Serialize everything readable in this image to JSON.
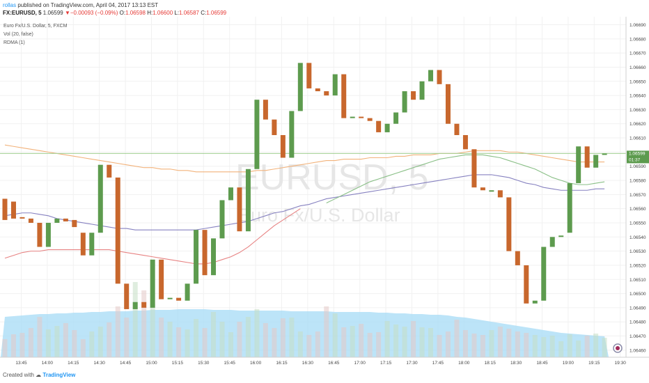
{
  "header": {
    "author": "rollas",
    "published_text": "published on TradingView.com, April 04, 2017 13:13 EST",
    "symbol": "FX:EURUSD, 5",
    "last_price": "1.06599",
    "change": "▼−0.00093 (−0.09%)",
    "open_label": "O:",
    "open": "1.06598",
    "high_label": "H:",
    "high": "1.06600",
    "low_label": "L:",
    "low": "1.06587",
    "close_label": "C:",
    "close": "1.06599"
  },
  "legend": {
    "title": "Euro Fx/U.S. Dollar, 5, FXCM",
    "vol": "Vol (20, false)",
    "rdma": "RDMA (1)"
  },
  "watermark": {
    "symbol": "EURUSD, 5",
    "name": "Euro Fx/U.S. Dollar"
  },
  "price_badge": {
    "value": "1.06599",
    "countdown": "01:37"
  },
  "footer": {
    "created_with": "Created with",
    "brand": "TradingView"
  },
  "colors": {
    "up": "#5d9b4e",
    "down": "#c8672d",
    "price_line": "#9fce90",
    "volume": "#a6dbf5",
    "volume_bar_up": "#c5dfc5",
    "volume_bar_down": "#e4c9c7",
    "ma_orange": "#f2b27a",
    "ma_purple": "#8681c0",
    "ma_green": "#89bf86",
    "ma_red": "#e78282"
  },
  "chart_data": {
    "type": "candlestick",
    "symbol": "EURUSD",
    "interval": "5",
    "ylim": [
      1.06455,
      1.06695
    ],
    "y_ticks": [
      "1.06690",
      "1.06680",
      "1.06670",
      "1.06660",
      "1.06650",
      "1.06640",
      "1.06630",
      "1.06620",
      "1.06610",
      "1.06600",
      "1.06590",
      "1.06580",
      "1.06570",
      "1.06560",
      "1.06550",
      "1.06540",
      "1.06530",
      "1.06520",
      "1.06510",
      "1.06500",
      "1.06490",
      "1.06480",
      "1.06470",
      "1.06460"
    ],
    "x_ticks": [
      "13:45",
      "14:00",
      "14:15",
      "14:30",
      "14:45",
      "15:00",
      "15:15",
      "15:30",
      "15:45",
      "16:00",
      "16:15",
      "16:30",
      "16:45",
      "17:00",
      "17:15",
      "17:30",
      "17:45",
      "18:00",
      "18:15",
      "18:30",
      "18:45",
      "19:00",
      "19:15",
      "19:30"
    ],
    "first_bar_time": "13:35",
    "candles": [
      {
        "o": 1.06567,
        "c": 1.06552
      },
      {
        "o": 1.06565,
        "c": 1.06553
      },
      {
        "o": 1.06554,
        "c": 1.06553
      },
      {
        "o": 1.06553,
        "c": 1.0655
      },
      {
        "o": 1.0655,
        "c": 1.06533
      },
      {
        "o": 1.06533,
        "c": 1.0655
      },
      {
        "o": 1.0655,
        "c": 1.06553
      },
      {
        "o": 1.06553,
        "c": 1.06551
      },
      {
        "o": 1.06552,
        "c": 1.06547
      },
      {
        "o": 1.06543,
        "c": 1.06527
      },
      {
        "o": 1.06527,
        "c": 1.06543
      },
      {
        "o": 1.06543,
        "c": 1.06591
      },
      {
        "o": 1.06591,
        "c": 1.06582
      },
      {
        "o": 1.06582,
        "c": 1.06507
      },
      {
        "o": 1.06507,
        "c": 1.06489
      },
      {
        "o": 1.06489,
        "c": 1.06494
      },
      {
        "o": 1.06494,
        "c": 1.0649
      },
      {
        "o": 1.0649,
        "c": 1.06524
      },
      {
        "o": 1.06524,
        "c": 1.06496
      },
      {
        "o": 1.06496,
        "c": 1.06497
      },
      {
        "o": 1.06497,
        "c": 1.06495
      },
      {
        "o": 1.06495,
        "c": 1.06507
      },
      {
        "o": 1.06507,
        "c": 1.06545
      },
      {
        "o": 1.06545,
        "c": 1.06513
      },
      {
        "o": 1.06513,
        "c": 1.06539
      },
      {
        "o": 1.06539,
        "c": 1.06566
      },
      {
        "o": 1.06566,
        "c": 1.06575
      },
      {
        "o": 1.06575,
        "c": 1.06544
      },
      {
        "o": 1.06544,
        "c": 1.06588
      },
      {
        "o": 1.06588,
        "c": 1.06637
      },
      {
        "o": 1.06637,
        "c": 1.06623
      },
      {
        "o": 1.06623,
        "c": 1.06612
      },
      {
        "o": 1.06612,
        "c": 1.06596
      },
      {
        "o": 1.06596,
        "c": 1.06629
      },
      {
        "o": 1.06629,
        "c": 1.06663
      },
      {
        "o": 1.06663,
        "c": 1.06645
      },
      {
        "o": 1.06645,
        "c": 1.06643
      },
      {
        "o": 1.06643,
        "c": 1.0664
      },
      {
        "o": 1.0664,
        "c": 1.06655
      },
      {
        "o": 1.06655,
        "c": 1.06624
      },
      {
        "o": 1.06624,
        "c": 1.06625
      },
      {
        "o": 1.06625,
        "c": 1.06624
      },
      {
        "o": 1.06624,
        "c": 1.06622
      },
      {
        "o": 1.06622,
        "c": 1.06614
      },
      {
        "o": 1.06614,
        "c": 1.0662
      },
      {
        "o": 1.0662,
        "c": 1.06628
      },
      {
        "o": 1.06628,
        "c": 1.06643
      },
      {
        "o": 1.06643,
        "c": 1.06637
      },
      {
        "o": 1.06637,
        "c": 1.0665
      },
      {
        "o": 1.0665,
        "c": 1.06658
      },
      {
        "o": 1.06658,
        "c": 1.06648
      },
      {
        "o": 1.06648,
        "c": 1.0662
      },
      {
        "o": 1.0662,
        "c": 1.06612
      },
      {
        "o": 1.06612,
        "c": 1.06602
      },
      {
        "o": 1.06602,
        "c": 1.06575
      },
      {
        "o": 1.06575,
        "c": 1.06573
      },
      {
        "o": 1.06573,
        "c": 1.06573
      },
      {
        "o": 1.06573,
        "c": 1.06568
      },
      {
        "o": 1.06568,
        "c": 1.0653
      },
      {
        "o": 1.0653,
        "c": 1.0652
      },
      {
        "o": 1.0652,
        "c": 1.06493
      },
      {
        "o": 1.06493,
        "c": 1.06495
      },
      {
        "o": 1.06495,
        "c": 1.06533
      },
      {
        "o": 1.06533,
        "c": 1.0654
      },
      {
        "o": 1.0654,
        "c": 1.06541
      },
      {
        "o": 1.06543,
        "c": 1.06578
      },
      {
        "o": 1.06578,
        "c": 1.06604
      },
      {
        "o": 1.06604,
        "c": 1.06589
      },
      {
        "o": 1.06589,
        "c": 1.06598
      },
      {
        "o": 1.06598,
        "c": 1.06599
      }
    ],
    "volume_fill_top": [
      455,
      454,
      453,
      452,
      451,
      451,
      450,
      450,
      449,
      449,
      448,
      448,
      447,
      447,
      447,
      446,
      446,
      445,
      445,
      445,
      444,
      444,
      444,
      444,
      445,
      445,
      445,
      446,
      446,
      446,
      446,
      446,
      446,
      447,
      447,
      447,
      447,
      447,
      448,
      448,
      448,
      448,
      448,
      449,
      449,
      450,
      450,
      451,
      451,
      452,
      452,
      453,
      455,
      456,
      458,
      460,
      462,
      464,
      466,
      468,
      470,
      472,
      474,
      476,
      478,
      479,
      480,
      481,
      482,
      483
    ],
    "volume_bars_top": [
      487,
      480,
      478,
      471,
      455,
      473,
      468,
      464,
      474,
      487,
      476,
      469,
      463,
      440,
      456,
      405,
      417,
      436,
      456,
      462,
      470,
      473,
      458,
      471,
      448,
      462,
      477,
      462,
      455,
      444,
      464,
      471,
      457,
      456,
      476,
      481,
      476,
      440,
      450,
      470,
      468,
      465,
      478,
      477,
      461,
      466,
      469,
      461,
      470,
      471,
      481,
      476,
      459,
      474,
      479,
      481,
      474,
      469,
      472,
      476,
      478,
      481,
      484,
      482,
      490,
      480,
      489,
      482,
      479,
      485
    ],
    "ma_orange_y": [
      1.06605,
      1.06604,
      1.06603,
      1.06602,
      1.06601,
      1.066,
      1.06599,
      1.06598,
      1.06597,
      1.06596,
      1.06595,
      1.06594,
      1.06593,
      1.06592,
      1.06591,
      1.0659,
      1.06589,
      1.06589,
      1.06588,
      1.06588,
      1.06587,
      1.06587,
      1.06586,
      1.06586,
      1.06586,
      1.06586,
      1.06586,
      1.06586,
      1.06586,
      1.06587,
      1.06587,
      1.06588,
      1.06589,
      1.0659,
      1.06591,
      1.06592,
      1.06593,
      1.06594,
      1.06594,
      1.06595,
      1.06595,
      1.06595,
      1.06596,
      1.06596,
      1.06596,
      1.06597,
      1.06597,
      1.06598,
      1.06598,
      1.06598,
      1.06599,
      1.06599,
      1.06599,
      1.066,
      1.06601,
      1.06601,
      1.06601,
      1.06601,
      1.066,
      1.066,
      1.06599,
      1.06598,
      1.06597,
      1.06596,
      1.06595,
      1.06594,
      1.06593,
      1.06593,
      1.06593,
      1.06593
    ],
    "ma_purple_y": [
      1.06555,
      1.06556,
      1.06557,
      1.06557,
      1.06556,
      1.06555,
      1.06553,
      1.06552,
      1.06551,
      1.0655,
      1.06549,
      1.06548,
      1.06547,
      1.06546,
      1.06546,
      1.06545,
      1.06545,
      1.06545,
      1.06545,
      1.06545,
      1.06545,
      1.06545,
      1.06545,
      1.06546,
      1.06547,
      1.06548,
      1.06549,
      1.0655,
      1.06551,
      1.06553,
      1.06555,
      1.06557,
      1.06558,
      1.0656,
      1.06562,
      1.06563,
      1.06565,
      1.06567,
      1.06568,
      1.06569,
      1.0657,
      1.06571,
      1.06572,
      1.06573,
      1.06574,
      1.06575,
      1.06576,
      1.06577,
      1.06578,
      1.06579,
      1.0658,
      1.06581,
      1.06582,
      1.06583,
      1.06584,
      1.06584,
      1.06584,
      1.06583,
      1.06582,
      1.0658,
      1.06578,
      1.06577,
      1.06575,
      1.06574,
      1.06573,
      1.06573,
      1.06573,
      1.06573,
      1.06574,
      1.06574
    ],
    "ma_green_start": 37,
    "ma_green_y": [
      1.06564,
      1.06567,
      1.0657,
      1.06573,
      1.06576,
      1.06579,
      1.06581,
      1.06583,
      1.06585,
      1.06587,
      1.06589,
      1.06591,
      1.06593,
      1.06595,
      1.06596,
      1.06597,
      1.06598,
      1.06598,
      1.06598,
      1.06597,
      1.06596,
      1.06594,
      1.06592,
      1.0659,
      1.06588,
      1.06585,
      1.06582,
      1.0658,
      1.06578,
      1.06577,
      1.06577,
      1.06578,
      1.06579
    ],
    "ma_red_start": 0,
    "ma_red_y": [
      1.06525,
      1.06527,
      1.06529,
      1.0653,
      1.0653,
      1.06531,
      1.06531,
      1.06531,
      1.06531,
      1.06531,
      1.06531,
      1.06531,
      1.06531,
      1.0653,
      1.06529,
      1.06528,
      1.06527,
      1.06526,
      1.06525,
      1.06524,
      1.06523,
      1.06522,
      1.06521,
      1.06521,
      1.06522,
      1.06524,
      1.06526,
      1.06529,
      1.06533,
      1.06538,
      1.06543,
      1.06548,
      1.06552,
      1.06556,
      1.0656
    ]
  }
}
